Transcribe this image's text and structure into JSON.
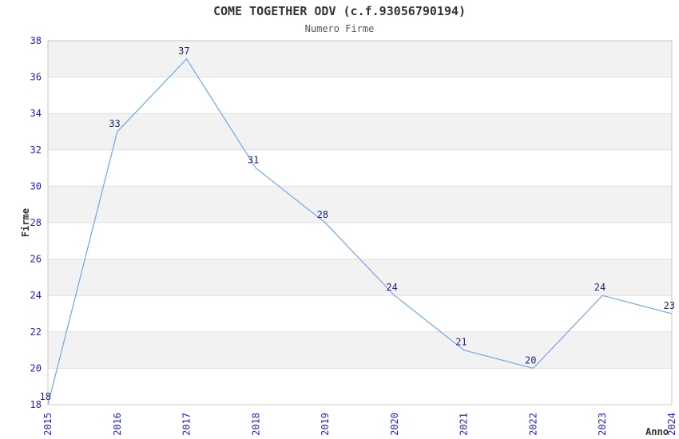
{
  "chart_data": {
    "type": "line",
    "title": "COME TOGETHER ODV (c.f.93056790194)",
    "subtitle": "Numero Firme",
    "xlabel": "Anno",
    "ylabel": "Firme",
    "categories": [
      "2015",
      "2016",
      "2017",
      "2018",
      "2019",
      "2020",
      "2021",
      "2022",
      "2023",
      "2024"
    ],
    "values": [
      18,
      33,
      37,
      31,
      28,
      24,
      21,
      20,
      24,
      23
    ],
    "ylim": [
      18,
      38
    ],
    "ytick_step": 2,
    "yticks": [
      18,
      20,
      22,
      24,
      26,
      28,
      30,
      32,
      34,
      36,
      38
    ],
    "grid": "alternating-horizontal-bands",
    "legend": "none",
    "point_labels_visible": true,
    "colors": {
      "line": "#79ade4",
      "tick_label": "#2222cc",
      "point_label": "#262280",
      "title": "#333333",
      "subtitle": "#555555",
      "axis_label": "#333333",
      "band": "#f2f2f2",
      "gridline": "#e0e0e0",
      "border": "#c8c8c8",
      "background": "#ffffff"
    }
  }
}
